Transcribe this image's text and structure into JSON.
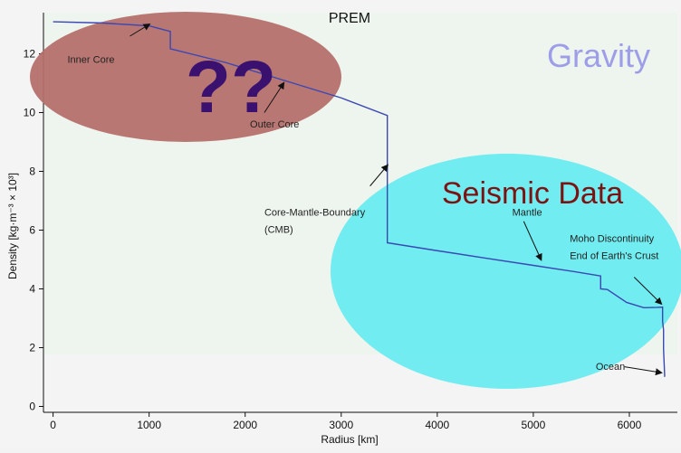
{
  "chart_data": {
    "type": "line",
    "title": "PREM",
    "xlabel": "Radius [km]",
    "ylabel": "Density [kg·m⁻³ × 10³]",
    "xlim": [
      -100,
      6500
    ],
    "ylim": [
      -0.2,
      13.4
    ],
    "x_ticks": [
      0,
      1000,
      2000,
      3000,
      4000,
      5000,
      6000
    ],
    "y_ticks": [
      0,
      2,
      4,
      6,
      8,
      10,
      12
    ],
    "grid": false,
    "series": [
      {
        "color": "#3a47b4",
        "points": [
          [
            0,
            13.09
          ],
          [
            500,
            13.05
          ],
          [
            1000,
            12.95
          ],
          [
            1221,
            12.76
          ],
          [
            1221,
            12.17
          ],
          [
            1800,
            11.7
          ],
          [
            2500,
            11.0
          ],
          [
            3000,
            10.5
          ],
          [
            3480,
            9.9
          ],
          [
            3480,
            5.57
          ],
          [
            4000,
            5.3
          ],
          [
            4500,
            5.05
          ],
          [
            5000,
            4.8
          ],
          [
            5500,
            4.55
          ],
          [
            5701,
            4.44
          ],
          [
            5701,
            4.0
          ],
          [
            5771,
            3.98
          ],
          [
            5771,
            3.98
          ],
          [
            5971,
            3.54
          ],
          [
            6151,
            3.36
          ],
          [
            6291,
            3.37
          ],
          [
            6346,
            3.38
          ],
          [
            6346,
            2.9
          ],
          [
            6356,
            2.6
          ],
          [
            6356,
            1.95
          ],
          [
            6368,
            1.02
          ],
          [
            6371,
            1.02
          ]
        ]
      }
    ],
    "regions": [
      {
        "name": "inner-core",
        "label": "Inner Core",
        "text_xy": [
          1.4,
          12.4
        ],
        "arrow_tail": [
          800,
          12.6
        ],
        "arrow_head": [
          1000,
          13.0
        ],
        "label_pos": [
          150,
          11.7
        ]
      },
      {
        "name": "outer-core",
        "label": "Outer Core",
        "label_pos": [
          2050,
          9.5
        ],
        "arrow_tail": [
          2200,
          10.0
        ],
        "arrow_head": [
          2400,
          11.0
        ]
      },
      {
        "name": "cmb",
        "label": "Core-Mantle-Boundary",
        "label2": "(CMB)",
        "label_pos": [
          2200,
          6.5
        ],
        "arrow_tail": [
          3300,
          7.5
        ],
        "arrow_head": [
          3480,
          8.2
        ]
      },
      {
        "name": "mantle",
        "label": "Mantle",
        "label_pos": [
          4780,
          6.5
        ],
        "arrow_tail": [
          4900,
          6.3
        ],
        "arrow_head": [
          5080,
          5.0
        ]
      },
      {
        "name": "moho",
        "label": "Moho Discontinuity",
        "label2": "End of Earth's Crust",
        "label_pos": [
          5380,
          5.6
        ],
        "arrow_tail": [
          6050,
          4.4
        ],
        "arrow_head": [
          6330,
          3.5
        ]
      },
      {
        "name": "ocean",
        "label": "Ocean",
        "label_pos": [
          5650,
          1.25
        ],
        "arrow_tail": [
          5950,
          1.35
        ],
        "arrow_head": [
          6330,
          1.15
        ]
      }
    ]
  },
  "overlays": {
    "question": "??",
    "gravity": "Gravity",
    "seismic": "Seismic Data",
    "colors": {
      "red_ellipse": "#b5706b",
      "cyan_ellipse": "#66eaf0",
      "question": "#3b1170",
      "gravity": "#9d9de8",
      "seismic": "#7c1313",
      "panel": "#eef5ee"
    }
  }
}
